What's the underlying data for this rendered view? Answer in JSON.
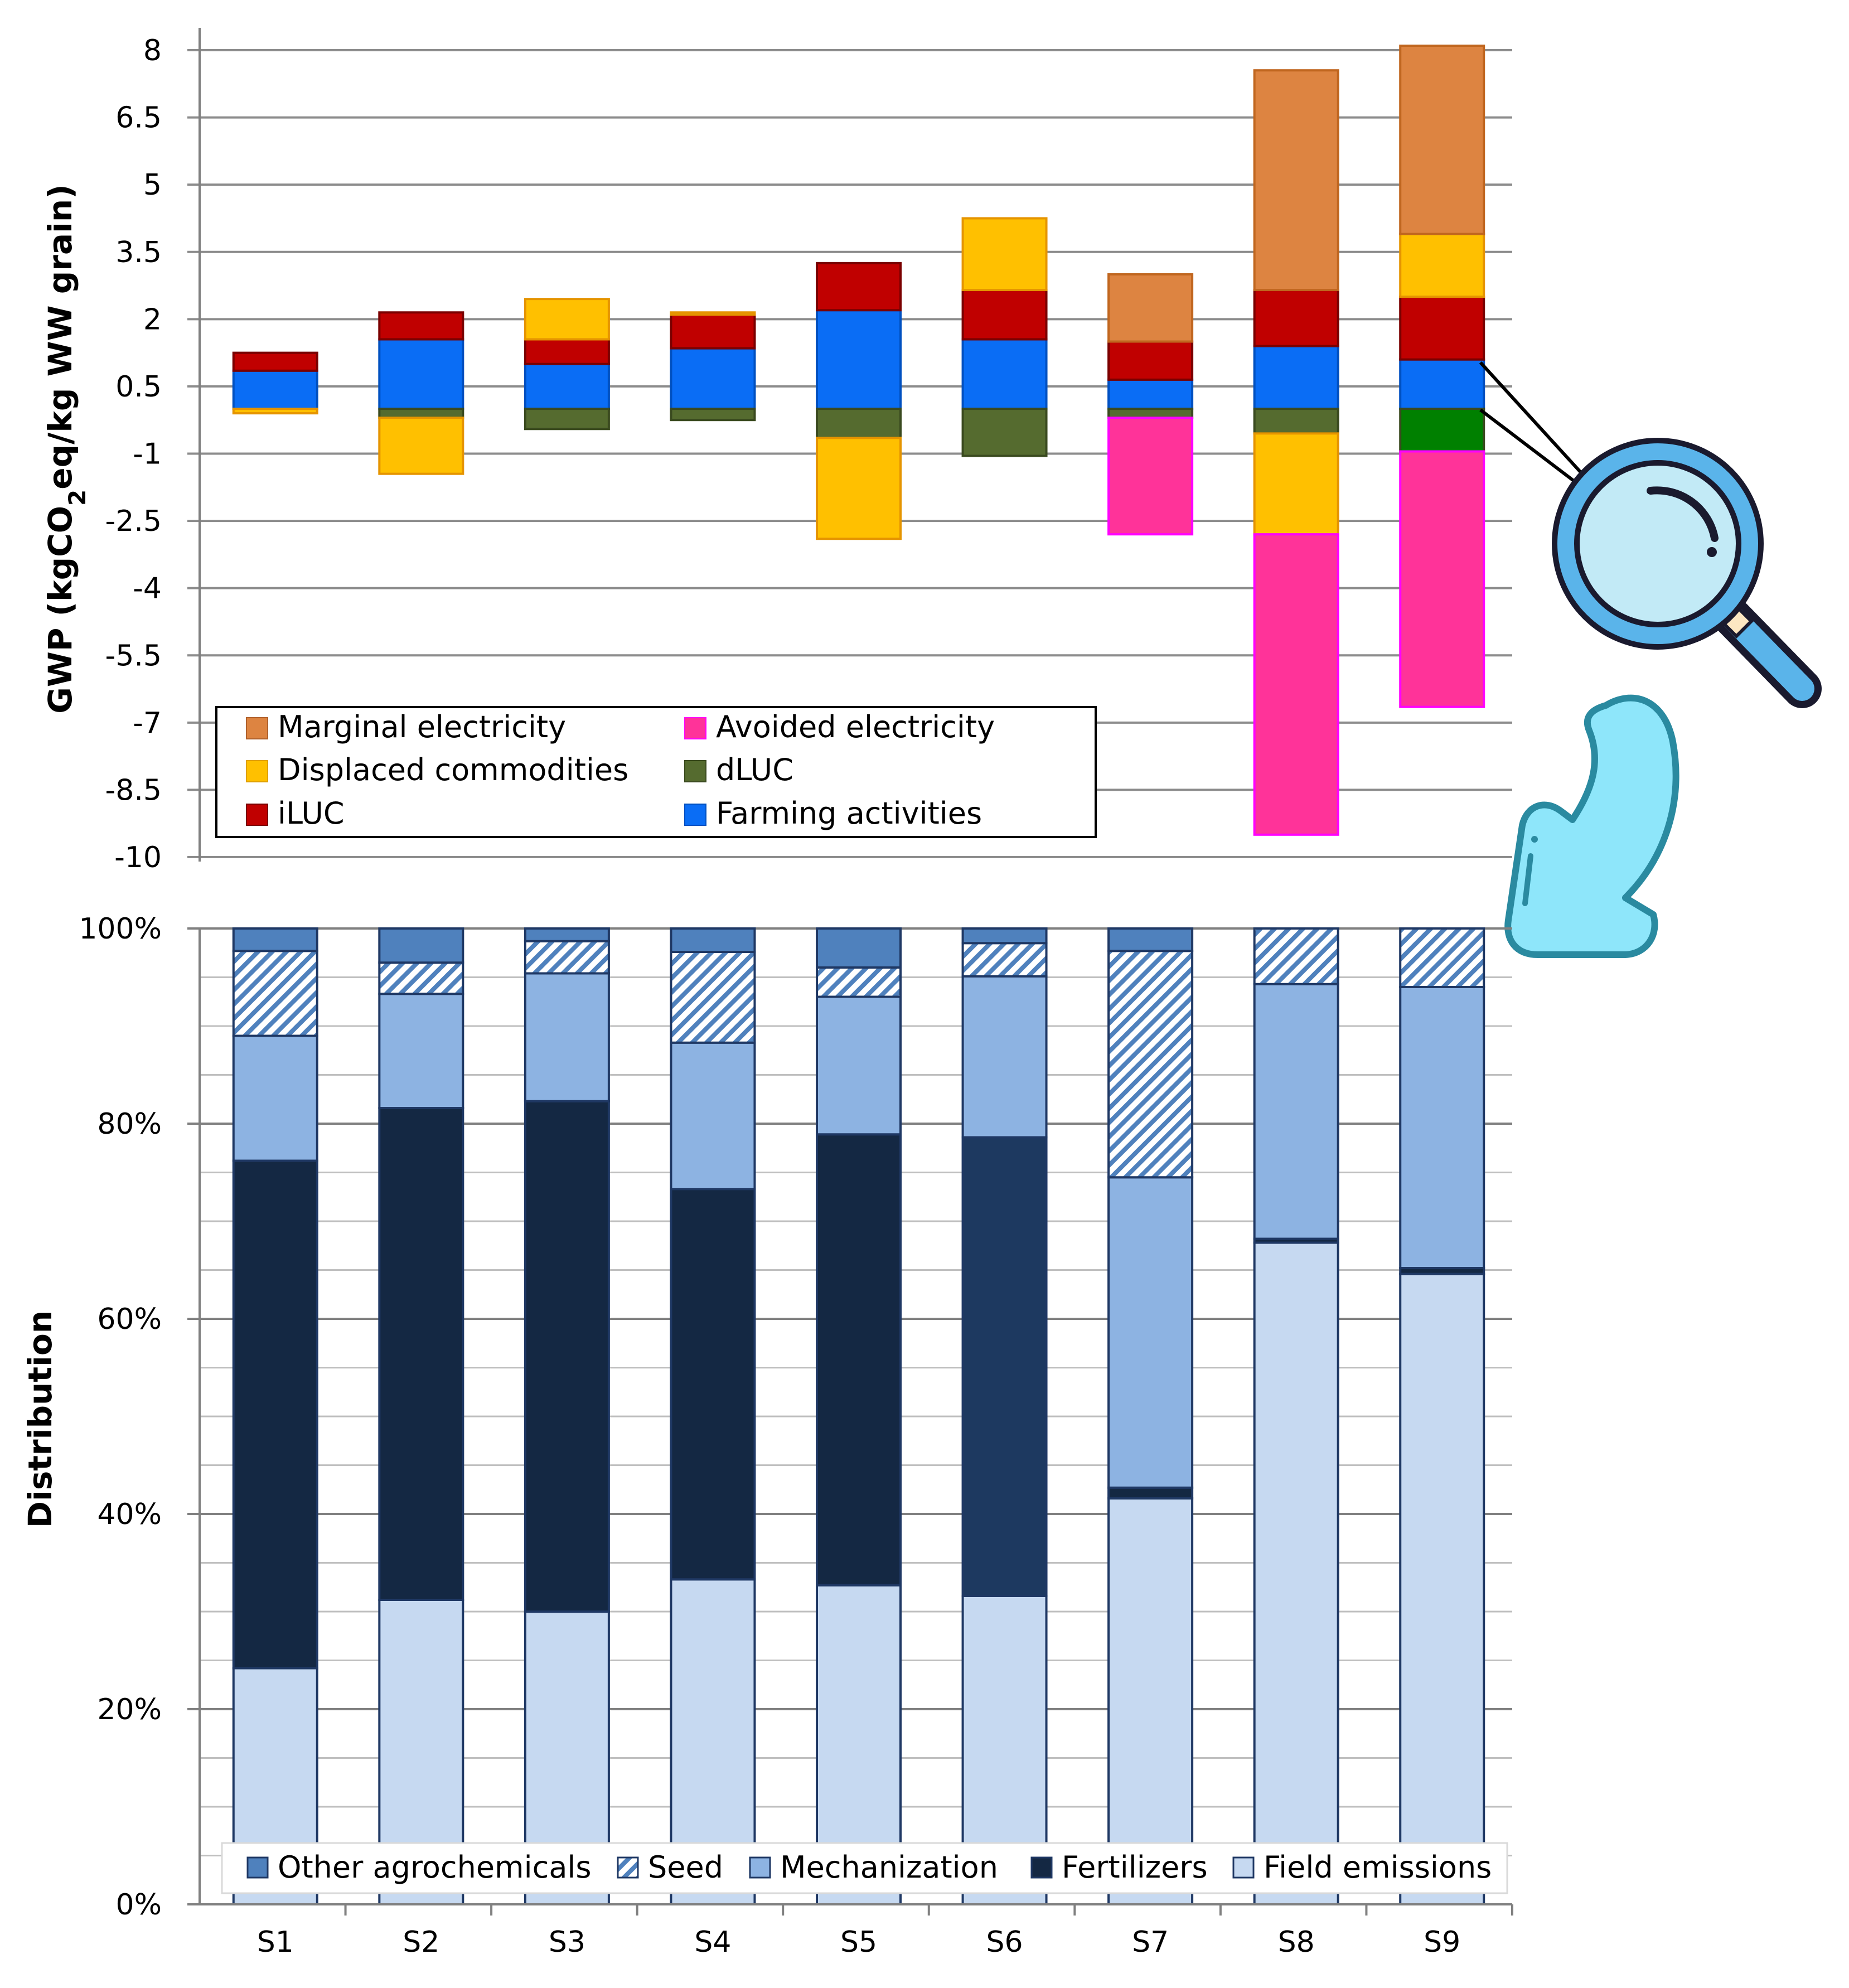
{
  "chart_data": [
    {
      "type": "bar",
      "stacked": true,
      "title": "",
      "ylabel": "GWP (kgCO2eq/kg WW grain)",
      "ylabel_parts": {
        "pre": "GWP (kgCO",
        "sub": "2",
        "post": "eq/kg WW grain)"
      },
      "xlabel": "",
      "ylim": [
        -10,
        8
      ],
      "yticks": [
        8,
        6.5,
        5,
        3.5,
        2,
        0.5,
        -1,
        -2.5,
        -4,
        -5.5,
        -7,
        -8.5,
        -10
      ],
      "ytick_labels": [
        "8",
        "6.5",
        "5",
        "3.5",
        "2",
        "0.5",
        "-1",
        "-2.5",
        "-4",
        "-5.5",
        "-7",
        "-8.5",
        "-10"
      ],
      "categories": [
        "S1",
        "S2",
        "S3",
        "S4",
        "S5",
        "S6",
        "S7",
        "S8",
        "S9"
      ],
      "legend_position": "bottom-left",
      "series": [
        {
          "name": "Farming activities",
          "color": "#0a6df5",
          "values": [
            0.85,
            1.55,
            1.0,
            1.35,
            2.2,
            1.55,
            0.65,
            1.4,
            1.1
          ]
        },
        {
          "name": "dLUC",
          "color": "#556b2f",
          "values": [
            0.0,
            -0.2,
            -0.45,
            -0.25,
            -0.65,
            -1.05,
            -0.2,
            -0.55,
            -0.95
          ]
        },
        {
          "name": "iLUC",
          "color": "#c00000",
          "values": [
            0.4,
            0.6,
            0.55,
            0.75,
            1.05,
            1.1,
            0.85,
            1.25,
            1.4
          ]
        },
        {
          "name": "Displaced commodities",
          "color": "#ffc000",
          "values": [
            -0.1,
            -1.25,
            0.9,
            0.05,
            -2.25,
            1.6,
            0.0,
            -2.25,
            1.4
          ]
        },
        {
          "name": "Marginal electricity",
          "color": "#dd8441",
          "values": [
            0.0,
            0.0,
            0.0,
            0.0,
            0.0,
            0.0,
            1.5,
            4.9,
            4.2
          ]
        },
        {
          "name": "Avoided electricity",
          "color": "#ff3399",
          "values": [
            0.0,
            0.0,
            0.0,
            0.0,
            0.0,
            0.0,
            -2.6,
            -6.7,
            -5.7
          ]
        }
      ],
      "legend": [
        "Marginal electricity",
        "Avoided electricity",
        "Displaced commodities",
        "dLUC",
        "iLUC",
        "Farming activities"
      ],
      "callout": {
        "category": "S9",
        "series": [
          "Farming activities",
          "dLUC"
        ],
        "dluc_highlight_color": "#008000"
      }
    },
    {
      "type": "bar",
      "stacked": true,
      "percent": true,
      "title": "",
      "ylabel": "Distribution",
      "xlabel": "",
      "ylim": [
        0,
        100
      ],
      "yticks": [
        0,
        20,
        40,
        60,
        80,
        100
      ],
      "ytick_labels": [
        "0%",
        "20%",
        "40%",
        "60%",
        "80%",
        "100%"
      ],
      "categories": [
        "S1",
        "S2",
        "S3",
        "S4",
        "S5",
        "S6",
        "S7",
        "S8",
        "S9"
      ],
      "legend_position": "bottom",
      "series": [
        {
          "name": "Field emissions",
          "color": "#c6d9f1",
          "values": [
            24.2,
            31.2,
            30.0,
            33.3,
            32.7,
            31.6,
            41.6,
            67.8,
            64.6
          ]
        },
        {
          "name": "Fertilizers",
          "color": "#142843",
          "values": [
            52.0,
            50.4,
            52.3,
            40.0,
            46.2,
            47.0,
            1.1,
            0.4,
            0.6
          ]
        },
        {
          "name": "Mechanization",
          "color": "#8db3e2",
          "values": [
            12.8,
            11.7,
            13.1,
            15.0,
            14.1,
            16.5,
            31.8,
            26.1,
            28.8
          ]
        },
        {
          "name": "Seed",
          "color": "#4f81bd",
          "pattern": "diagonal-hatch",
          "values": [
            8.7,
            3.2,
            3.3,
            9.3,
            3.0,
            3.4,
            23.2,
            5.7,
            6.0
          ]
        },
        {
          "name": "Other agrochemicals",
          "color": "#4f81bd",
          "values": [
            2.3,
            3.5,
            1.3,
            2.4,
            4.0,
            1.5,
            2.3,
            0.0,
            0.0
          ]
        }
      ],
      "legend": [
        "Other agrochemicals",
        "Seed",
        "Mechanization",
        "Fertilizers",
        "Field emissions"
      ]
    }
  ]
}
